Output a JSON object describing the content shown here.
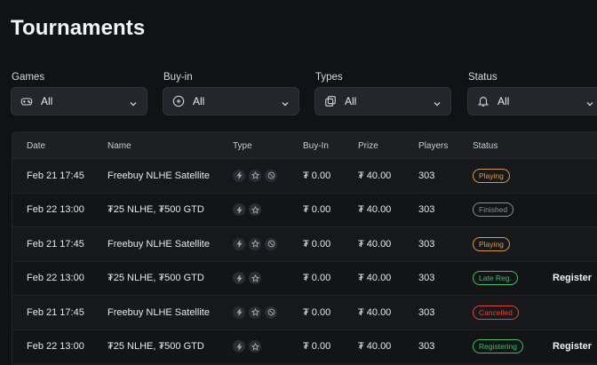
{
  "page": {
    "title": "Tournaments"
  },
  "filters": [
    {
      "label": "Games",
      "value": "All",
      "icon": "gamepad-icon"
    },
    {
      "label": "Buy-in",
      "value": "All",
      "icon": "coin-icon"
    },
    {
      "label": "Types",
      "value": "All",
      "icon": "copy-icon"
    },
    {
      "label": "Status",
      "value": "All",
      "icon": "bell-icon"
    }
  ],
  "table": {
    "columns": [
      "Date",
      "Name",
      "Type",
      "Buy-In",
      "Prize",
      "Players",
      "Status"
    ],
    "rows": [
      {
        "date": "Feb 21 17:45",
        "name": "Freebuy NLHE Satellite",
        "types": [
          "bolt-icon",
          "star-icon",
          "chip-icon"
        ],
        "buyin": "₮ 0.00",
        "prize": "₮ 40.00",
        "players": "303",
        "status": "Playing",
        "status_color": "#d99a4a",
        "action": ""
      },
      {
        "date": "Feb 22 13:00",
        "name": "₮25 NLHE, ₮500 GTD",
        "types": [
          "bolt-icon",
          "star-icon"
        ],
        "buyin": "₮ 0.00",
        "prize": "₮ 40.00",
        "players": "303",
        "status": "Finished",
        "status_color": "#8a8f99",
        "action": ""
      },
      {
        "date": "Feb 21 17:45",
        "name": "Freebuy NLHE Satellite",
        "types": [
          "bolt-icon",
          "star-icon",
          "chip-icon"
        ],
        "buyin": "₮ 0.00",
        "prize": "₮ 40.00",
        "players": "303",
        "status": "Playing",
        "status_color": "#d99a4a",
        "action": ""
      },
      {
        "date": "Feb 22 13:00",
        "name": "₮25 NLHE, ₮500 GTD",
        "types": [
          "bolt-icon",
          "star-icon"
        ],
        "buyin": "₮ 0.00",
        "prize": "₮ 40.00",
        "players": "303",
        "status": "Late Reg.",
        "status_color": "#3fbf6a",
        "action": "Register"
      },
      {
        "date": "Feb 21 17:45",
        "name": "Freebuy NLHE Satellite",
        "types": [
          "bolt-icon",
          "star-icon",
          "chip-icon"
        ],
        "buyin": "₮ 0.00",
        "prize": "₮ 40.00",
        "players": "303",
        "status": "Cancelled",
        "status_color": "#e04545",
        "action": ""
      },
      {
        "date": "Feb 22 13:00",
        "name": "₮25 NLHE, ₮500 GTD",
        "types": [
          "bolt-icon",
          "star-icon"
        ],
        "buyin": "₮ 0.00",
        "prize": "₮ 40.00",
        "players": "303",
        "status": "Registering",
        "status_color": "#3fbf6a",
        "action": "Register"
      }
    ]
  }
}
